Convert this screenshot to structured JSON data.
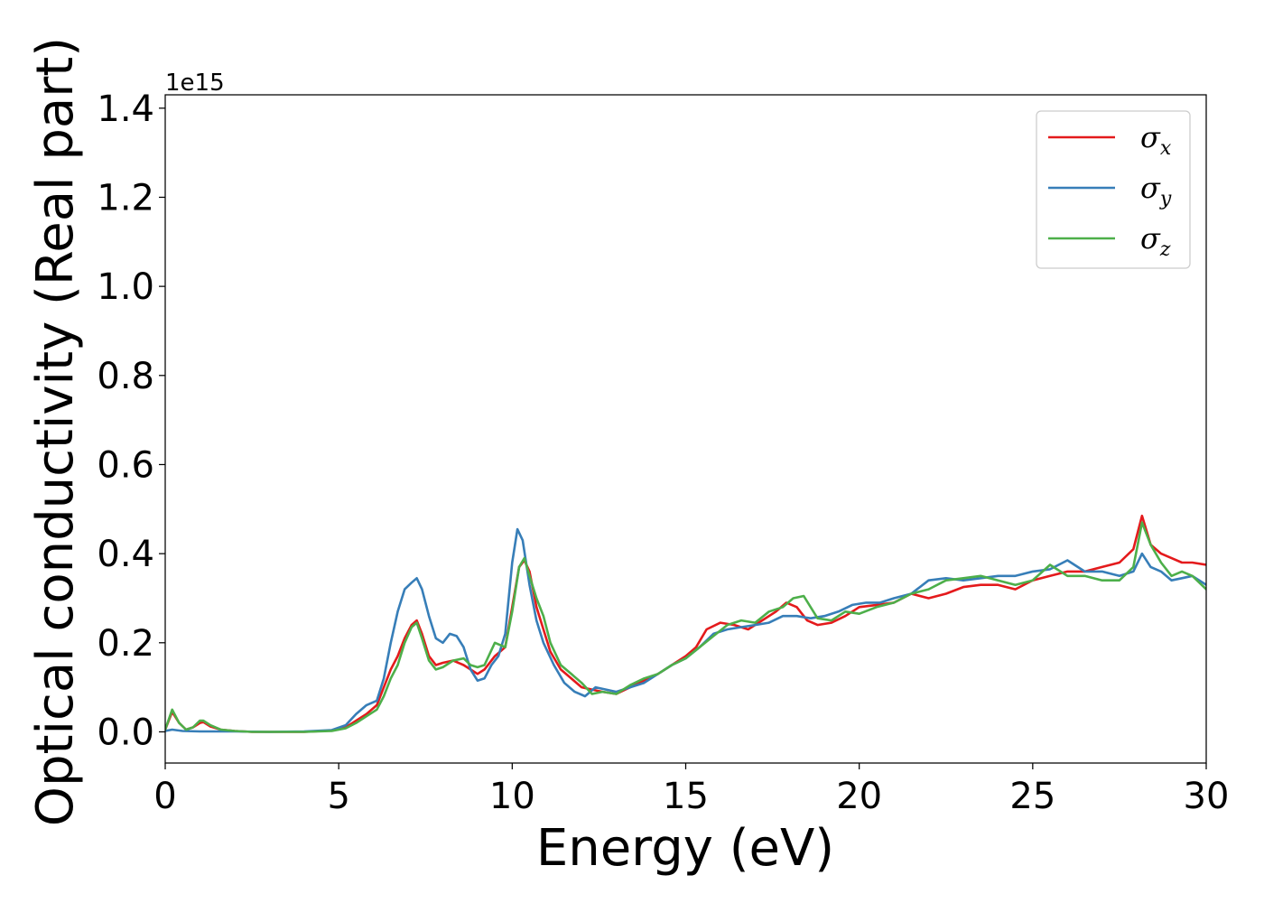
{
  "chart_data": {
    "type": "line",
    "title": "",
    "xlabel": "Energy (eV)",
    "ylabel": "Optical conductivity (Real part)",
    "y_offset_label": "1e15",
    "xlim": [
      0,
      30
    ],
    "ylim": [
      -0.07,
      1.43
    ],
    "xticks": [
      0,
      5,
      10,
      15,
      20,
      25,
      30
    ],
    "yticks": [
      0.0,
      0.2,
      0.4,
      0.6,
      0.8,
      1.0,
      1.2,
      1.4
    ],
    "xtick_labels": [
      "0",
      "5",
      "10",
      "15",
      "20",
      "25",
      "30"
    ],
    "ytick_labels": [
      "0.0",
      "0.2",
      "0.4",
      "0.6",
      "0.8",
      "1.0",
      "1.2",
      "1.4"
    ],
    "grid": false,
    "legend_position": "top-right",
    "series": [
      {
        "name": "σx",
        "legend_symbol": "σ",
        "legend_subscript": "x",
        "color": "#e41a1c",
        "x": [
          0,
          0.2,
          0.4,
          0.6,
          0.8,
          1.0,
          1.1,
          1.3,
          1.6,
          2.0,
          2.5,
          3.0,
          4.0,
          4.8,
          5.2,
          5.5,
          5.8,
          6.1,
          6.3,
          6.5,
          6.7,
          6.9,
          7.1,
          7.25,
          7.4,
          7.6,
          7.8,
          8.0,
          8.3,
          8.6,
          8.8,
          9.0,
          9.2,
          9.5,
          9.8,
          10.0,
          10.2,
          10.35,
          10.5,
          10.7,
          10.9,
          11.1,
          11.4,
          11.7,
          12.0,
          12.3,
          12.6,
          13.0,
          13.4,
          13.8,
          14.2,
          14.6,
          15.0,
          15.3,
          15.6,
          16.0,
          16.4,
          16.8,
          17.2,
          17.6,
          17.9,
          18.2,
          18.5,
          18.8,
          19.2,
          19.6,
          20.0,
          20.5,
          21.0,
          21.5,
          22.0,
          22.5,
          23.0,
          23.5,
          24.0,
          24.5,
          25.0,
          25.5,
          26.0,
          26.5,
          27.0,
          27.5,
          27.9,
          28.15,
          28.4,
          28.7,
          29.0,
          29.3,
          29.6,
          30.0
        ],
        "y": [
          0.005,
          0.045,
          0.02,
          0.005,
          0.01,
          0.02,
          0.022,
          0.012,
          0.005,
          0.002,
          0.0,
          0.0,
          0.0,
          0.003,
          0.01,
          0.025,
          0.04,
          0.06,
          0.1,
          0.14,
          0.17,
          0.21,
          0.24,
          0.25,
          0.22,
          0.17,
          0.15,
          0.155,
          0.16,
          0.15,
          0.14,
          0.13,
          0.14,
          0.17,
          0.19,
          0.28,
          0.37,
          0.385,
          0.36,
          0.28,
          0.23,
          0.18,
          0.14,
          0.12,
          0.1,
          0.095,
          0.09,
          0.085,
          0.1,
          0.115,
          0.13,
          0.15,
          0.17,
          0.19,
          0.23,
          0.245,
          0.24,
          0.23,
          0.25,
          0.27,
          0.29,
          0.28,
          0.25,
          0.24,
          0.245,
          0.26,
          0.28,
          0.285,
          0.29,
          0.31,
          0.3,
          0.31,
          0.325,
          0.33,
          0.33,
          0.32,
          0.34,
          0.35,
          0.36,
          0.36,
          0.37,
          0.38,
          0.41,
          0.485,
          0.42,
          0.4,
          0.39,
          0.38,
          0.38,
          0.375
        ]
      },
      {
        "name": "σy",
        "legend_symbol": "σ",
        "legend_subscript": "y",
        "color": "#377eb8",
        "x": [
          0,
          0.2,
          0.5,
          1.0,
          2.0,
          3.0,
          4.0,
          4.8,
          5.2,
          5.5,
          5.8,
          6.1,
          6.3,
          6.5,
          6.7,
          6.9,
          7.1,
          7.25,
          7.4,
          7.6,
          7.8,
          8.0,
          8.2,
          8.4,
          8.6,
          8.8,
          9.0,
          9.2,
          9.4,
          9.6,
          9.8,
          10.0,
          10.15,
          10.3,
          10.5,
          10.7,
          10.9,
          11.2,
          11.5,
          11.8,
          12.1,
          12.4,
          12.7,
          13.0,
          13.4,
          13.8,
          14.2,
          14.6,
          15.0,
          15.4,
          15.8,
          16.2,
          16.6,
          17.0,
          17.4,
          17.8,
          18.2,
          18.6,
          19.0,
          19.4,
          19.8,
          20.2,
          20.6,
          21.0,
          21.5,
          22.0,
          22.5,
          23.0,
          23.5,
          24.0,
          24.5,
          25.0,
          25.5,
          26.0,
          26.5,
          27.0,
          27.5,
          27.9,
          28.15,
          28.4,
          28.7,
          29.0,
          29.3,
          29.6,
          30.0
        ],
        "y": [
          0.002,
          0.005,
          0.002,
          0.001,
          0.001,
          0.0,
          0.001,
          0.004,
          0.015,
          0.04,
          0.06,
          0.07,
          0.12,
          0.2,
          0.27,
          0.32,
          0.335,
          0.345,
          0.32,
          0.26,
          0.21,
          0.2,
          0.22,
          0.215,
          0.19,
          0.14,
          0.115,
          0.12,
          0.15,
          0.17,
          0.22,
          0.38,
          0.455,
          0.43,
          0.33,
          0.25,
          0.2,
          0.15,
          0.11,
          0.09,
          0.08,
          0.1,
          0.095,
          0.09,
          0.1,
          0.11,
          0.13,
          0.15,
          0.165,
          0.19,
          0.22,
          0.23,
          0.235,
          0.24,
          0.245,
          0.26,
          0.26,
          0.255,
          0.26,
          0.27,
          0.285,
          0.29,
          0.29,
          0.3,
          0.31,
          0.34,
          0.345,
          0.34,
          0.345,
          0.35,
          0.35,
          0.36,
          0.365,
          0.385,
          0.36,
          0.36,
          0.35,
          0.36,
          0.4,
          0.37,
          0.36,
          0.34,
          0.345,
          0.35,
          0.33
        ]
      },
      {
        "name": "σz",
        "legend_symbol": "σ",
        "legend_subscript": "z",
        "color": "#4daf4a",
        "x": [
          0,
          0.2,
          0.4,
          0.6,
          0.8,
          1.0,
          1.1,
          1.3,
          1.6,
          2.0,
          2.5,
          3.0,
          4.0,
          4.8,
          5.2,
          5.5,
          5.8,
          6.1,
          6.3,
          6.5,
          6.7,
          6.9,
          7.1,
          7.25,
          7.4,
          7.6,
          7.8,
          8.0,
          8.3,
          8.6,
          8.8,
          9.0,
          9.2,
          9.5,
          9.8,
          10.0,
          10.2,
          10.35,
          10.5,
          10.7,
          10.9,
          11.1,
          11.4,
          11.7,
          12.0,
          12.3,
          12.6,
          13.0,
          13.4,
          13.8,
          14.2,
          14.6,
          15.0,
          15.4,
          15.8,
          16.2,
          16.6,
          17.0,
          17.4,
          17.8,
          18.1,
          18.4,
          18.8,
          19.2,
          19.6,
          20.0,
          20.5,
          21.0,
          21.5,
          22.0,
          22.5,
          23.0,
          23.5,
          24.0,
          24.5,
          25.0,
          25.5,
          26.0,
          26.5,
          27.0,
          27.5,
          27.9,
          28.15,
          28.4,
          28.7,
          29.0,
          29.3,
          29.6,
          30.0
        ],
        "y": [
          0.005,
          0.05,
          0.02,
          0.005,
          0.01,
          0.025,
          0.025,
          0.015,
          0.005,
          0.002,
          0.0,
          0.0,
          0.0,
          0.002,
          0.008,
          0.02,
          0.035,
          0.05,
          0.08,
          0.12,
          0.15,
          0.2,
          0.235,
          0.245,
          0.21,
          0.16,
          0.14,
          0.145,
          0.16,
          0.165,
          0.15,
          0.145,
          0.15,
          0.2,
          0.19,
          0.27,
          0.37,
          0.39,
          0.35,
          0.3,
          0.26,
          0.2,
          0.15,
          0.13,
          0.11,
          0.085,
          0.09,
          0.085,
          0.105,
          0.12,
          0.13,
          0.15,
          0.165,
          0.19,
          0.215,
          0.24,
          0.25,
          0.245,
          0.27,
          0.28,
          0.3,
          0.305,
          0.255,
          0.25,
          0.27,
          0.265,
          0.28,
          0.29,
          0.31,
          0.32,
          0.34,
          0.345,
          0.35,
          0.34,
          0.33,
          0.34,
          0.375,
          0.35,
          0.35,
          0.34,
          0.34,
          0.37,
          0.47,
          0.42,
          0.38,
          0.35,
          0.36,
          0.35,
          0.32
        ]
      }
    ]
  }
}
